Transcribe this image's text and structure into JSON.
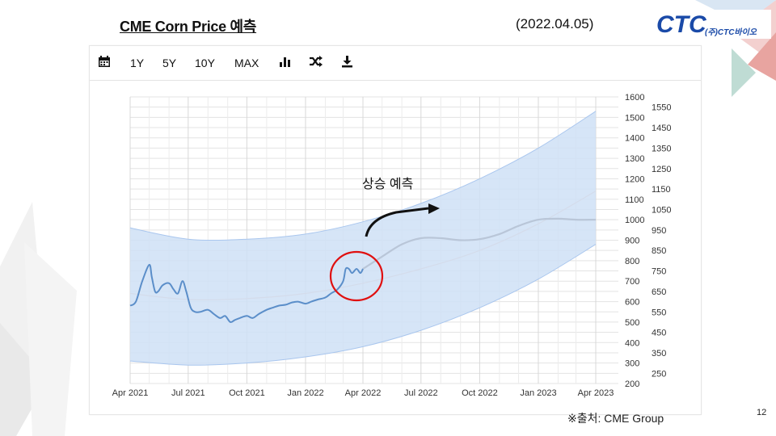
{
  "header": {
    "title": "CME Corn Price 예측",
    "date": "(2022.04.05)"
  },
  "logo": {
    "mark": "CTC",
    "company": "(주)CTC바이오"
  },
  "toolbar": {
    "calendar_icon": "calendar-icon",
    "range_1y": "1Y",
    "range_5y": "5Y",
    "range_10y": "10Y",
    "range_max": "MAX",
    "chart_type_icon": "bar-chart-icon",
    "shuffle_icon": "shuffle-icon",
    "download_icon": "download-icon"
  },
  "footer": {
    "source": "※출처: CME Group",
    "page_number": "12"
  },
  "colors": {
    "line": "#5b8ec9",
    "forecast": "#b9c6d8",
    "band": "#cfe0f6",
    "band_edge": "#a9c6ee",
    "highlight": "#e01010"
  },
  "chart_data": {
    "type": "line",
    "x_ticks": [
      "Apr 2021",
      "Jul 2021",
      "Oct 2021",
      "Jan 2022",
      "Apr 2022",
      "Jul 2022",
      "Oct 2022",
      "Jan 2023",
      "Apr 2023"
    ],
    "y_left_ticks": [
      200,
      300,
      400,
      500,
      600,
      700,
      800,
      900,
      1000,
      1100,
      1200,
      1300,
      1400,
      1500,
      1600
    ],
    "y_right_ticks": [
      250,
      350,
      450,
      550,
      650,
      750,
      850,
      950,
      1050,
      1150,
      1250,
      1350,
      1450,
      1550
    ],
    "ylim": [
      200,
      1600
    ],
    "grid": true,
    "annotation": "상승 예측",
    "series": [
      {
        "x": [
          "2021-04-01",
          "2021-04-10",
          "2021-04-20",
          "2021-05-01",
          "2021-05-05",
          "2021-05-10",
          "2021-05-15",
          "2021-05-22",
          "2021-06-01",
          "2021-06-08",
          "2021-06-15",
          "2021-06-22",
          "2021-06-28",
          "2021-07-05",
          "2021-07-12",
          "2021-07-20",
          "2021-08-01",
          "2021-08-10",
          "2021-08-20",
          "2021-08-28",
          "2021-09-05",
          "2021-09-12",
          "2021-09-20",
          "2021-10-01",
          "2021-10-10",
          "2021-10-20",
          "2021-11-01",
          "2021-11-10",
          "2021-11-20",
          "2021-12-01",
          "2021-12-10",
          "2021-12-20",
          "2022-01-01",
          "2022-01-10",
          "2022-01-20",
          "2022-02-01",
          "2022-02-10",
          "2022-02-20",
          "2022-03-01",
          "2022-03-05",
          "2022-03-10",
          "2022-03-15",
          "2022-03-22",
          "2022-03-28",
          "2022-04-01"
        ],
        "y": [
          580,
          600,
          700,
          780,
          720,
          650,
          650,
          680,
          690,
          660,
          640,
          700,
          650,
          570,
          550,
          550,
          560,
          540,
          520,
          530,
          500,
          510,
          520,
          530,
          520,
          540,
          560,
          570,
          580,
          585,
          595,
          600,
          590,
          600,
          610,
          620,
          640,
          660,
          700,
          760,
          760,
          740,
          760,
          740,
          760
        ]
      },
      {
        "x": [
          "2022-04-01",
          "2022-05-01",
          "2022-06-01",
          "2022-07-01",
          "2022-08-01",
          "2022-09-01",
          "2022-10-01",
          "2022-11-01",
          "2022-12-01",
          "2023-01-01",
          "2023-02-01",
          "2023-03-01",
          "2023-04-01"
        ],
        "y": [
          760,
          820,
          880,
          910,
          910,
          900,
          905,
          930,
          970,
          1000,
          1005,
          1000,
          1000
        ]
      }
    ],
    "trend": {
      "x": [
        "2021-04-01",
        "2021-07-01",
        "2021-10-01",
        "2022-01-01",
        "2022-04-01",
        "2022-07-01",
        "2022-10-01",
        "2023-01-01",
        "2023-04-01"
      ],
      "y": [
        640,
        610,
        615,
        640,
        690,
        760,
        850,
        980,
        1140
      ]
    },
    "confidence_band": {
      "x": [
        "2021-04-01",
        "2021-07-01",
        "2021-10-01",
        "2022-01-01",
        "2022-04-01",
        "2022-07-01",
        "2022-10-01",
        "2023-01-01",
        "2023-04-01"
      ],
      "upper": [
        960,
        905,
        905,
        930,
        990,
        1080,
        1200,
        1350,
        1530
      ],
      "lower": [
        310,
        290,
        300,
        330,
        380,
        460,
        570,
        710,
        880
      ]
    }
  }
}
